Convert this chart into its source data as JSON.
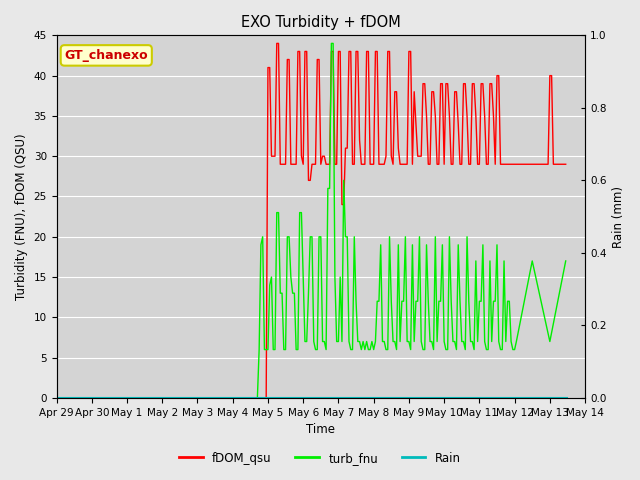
{
  "title": "EXO Turbidity + fDOM",
  "xlabel": "Time",
  "ylabel_left": "Turbidity (FNU), fDOM (QSU)",
  "ylabel_right": "Rain (mm)",
  "ylim_left": [
    0,
    45
  ],
  "ylim_right": [
    0,
    1.0
  ],
  "annotation_text": "GT_chanexo",
  "annotation_color": "#cc0000",
  "annotation_bg": "#ffffcc",
  "annotation_border": "#cccc00",
  "fdom_color": "#ff0000",
  "turb_color": "#00ee00",
  "rain_color": "#00bbbb",
  "fig_bg_color": "#e8e8e8",
  "plot_bg_color": "#d4d4d4",
  "grid_color": "#ffffff",
  "fdom_qsu_times": [
    5.5,
    5.55,
    5.6,
    5.65,
    5.7,
    5.75,
    5.8,
    5.85,
    5.9,
    5.95,
    6.0,
    6.05,
    6.1,
    6.15,
    6.2,
    6.25,
    6.3,
    6.35,
    6.4,
    6.45,
    6.5,
    6.55,
    6.6,
    6.65,
    6.7,
    6.75,
    6.8,
    6.85,
    6.9,
    6.95,
    7.0,
    7.05,
    7.1,
    7.15,
    7.2,
    7.25,
    7.3,
    7.35,
    7.4,
    7.45,
    7.5,
    7.55,
    7.6,
    7.65,
    7.7,
    7.75,
    7.8,
    7.85,
    7.9,
    7.95,
    8.0,
    8.05,
    8.1,
    8.15,
    8.2,
    8.25,
    8.3,
    8.35,
    8.4,
    8.45,
    8.5,
    8.55,
    8.6,
    8.65,
    8.7,
    8.75,
    8.8,
    8.85,
    8.9,
    8.95,
    9.0,
    9.05,
    9.1,
    9.15,
    9.2,
    9.25,
    9.3,
    9.35,
    9.4,
    9.45,
    9.5,
    9.55,
    9.6,
    9.65,
    9.7,
    9.75,
    9.8,
    9.85,
    9.9,
    9.95,
    10.0,
    10.05,
    10.1,
    10.15,
    10.2,
    10.25,
    10.3,
    10.35,
    10.4,
    10.45,
    10.5,
    10.55,
    10.6,
    10.65,
    10.7,
    10.75,
    10.8,
    10.85,
    10.9,
    10.95,
    11.0,
    11.05,
    11.1,
    11.15,
    11.2,
    11.25,
    11.3,
    11.35,
    11.4,
    11.45,
    11.5,
    11.55,
    11.6,
    11.65,
    11.7,
    11.75,
    11.8,
    11.85,
    11.9,
    11.95,
    12.0,
    12.05,
    12.1,
    12.15,
    12.2,
    12.25,
    12.3,
    12.35,
    12.4,
    12.45,
    12.5,
    12.55,
    12.6,
    12.65,
    12.7,
    12.75,
    12.8,
    12.85,
    12.9,
    12.95,
    13.0,
    13.05,
    13.1,
    13.15,
    13.2,
    13.25,
    13.3,
    13.35,
    13.4,
    13.45,
    13.5,
    13.55,
    13.6,
    13.65,
    13.7,
    13.75,
    13.8,
    13.85,
    13.9,
    13.95,
    14.0,
    14.05,
    14.1,
    14.15,
    14.2,
    14.25,
    14.3,
    14.35,
    14.4,
    14.45
  ],
  "fdom_qsu_vals": [
    0,
    0,
    0,
    0,
    0,
    0,
    0,
    0,
    0,
    0,
    41,
    41,
    30,
    30,
    30,
    44,
    44,
    29,
    29,
    29,
    29,
    42,
    42,
    29,
    29,
    29,
    29,
    43,
    43,
    30,
    29,
    43,
    43,
    27,
    27,
    29,
    29,
    29,
    42,
    42,
    29,
    30,
    30,
    29,
    29,
    29,
    43,
    43,
    29,
    29,
    43,
    43,
    24,
    24,
    31,
    31,
    43,
    43,
    29,
    29,
    43,
    43,
    32,
    29,
    29,
    29,
    43,
    43,
    29,
    29,
    29,
    43,
    43,
    29,
    29,
    29,
    29,
    30,
    43,
    43,
    30,
    29,
    38,
    38,
    31,
    29,
    29,
    29,
    29,
    29,
    43,
    43,
    29,
    38,
    34,
    30,
    30,
    30,
    39,
    39,
    35,
    29,
    29,
    38,
    38,
    35,
    29,
    29,
    39,
    39,
    29,
    39,
    39,
    35,
    29,
    29,
    38,
    38,
    34,
    29,
    29,
    39,
    39,
    35,
    29,
    29,
    39,
    39,
    35,
    29,
    29,
    39,
    39,
    35,
    29,
    29,
    39,
    39,
    35,
    29,
    40,
    40,
    29,
    29,
    29,
    29,
    29,
    29,
    29,
    29,
    29,
    29,
    29,
    29,
    29,
    29,
    29,
    29,
    29,
    29,
    29,
    29,
    29,
    29,
    29,
    29,
    29,
    29,
    29,
    29,
    40,
    40,
    29,
    29,
    29,
    29,
    29,
    29,
    29,
    29
  ],
  "turb_fnu_times": [
    5.5,
    5.55,
    5.6,
    5.65,
    5.7,
    5.75,
    5.8,
    5.85,
    5.9,
    5.95,
    6.0,
    6.05,
    6.1,
    6.15,
    6.2,
    6.25,
    6.3,
    6.35,
    6.4,
    6.45,
    6.5,
    6.55,
    6.6,
    6.65,
    6.7,
    6.75,
    6.8,
    6.85,
    6.9,
    6.95,
    7.0,
    7.05,
    7.1,
    7.15,
    7.2,
    7.25,
    7.3,
    7.35,
    7.4,
    7.45,
    7.5,
    7.55,
    7.6,
    7.65,
    7.7,
    7.75,
    7.8,
    7.85,
    7.9,
    7.95,
    8.0,
    8.05,
    8.1,
    8.15,
    8.2,
    8.25,
    8.3,
    8.35,
    8.4,
    8.45,
    8.5,
    8.55,
    8.6,
    8.65,
    8.7,
    8.75,
    8.8,
    8.85,
    8.9,
    8.95,
    9.0,
    9.05,
    9.1,
    9.15,
    9.2,
    9.25,
    9.3,
    9.35,
    9.4,
    9.45,
    9.5,
    9.55,
    9.6,
    9.65,
    9.7,
    9.75,
    9.8,
    9.85,
    9.9,
    9.95,
    10.0,
    10.05,
    10.1,
    10.15,
    10.2,
    10.25,
    10.3,
    10.35,
    10.4,
    10.45,
    10.5,
    10.55,
    10.6,
    10.65,
    10.7,
    10.75,
    10.8,
    10.85,
    10.9,
    10.95,
    11.0,
    11.05,
    11.1,
    11.15,
    11.2,
    11.25,
    11.3,
    11.35,
    11.4,
    11.45,
    11.5,
    11.55,
    11.6,
    11.65,
    11.7,
    11.75,
    11.8,
    11.85,
    11.9,
    11.95,
    12.0,
    12.05,
    12.1,
    12.15,
    12.2,
    12.25,
    12.3,
    12.35,
    12.4,
    12.45,
    12.5,
    12.55,
    12.6,
    12.65,
    12.7,
    12.75,
    12.8,
    12.85,
    12.9,
    12.95,
    13.0,
    13.05,
    13.5,
    14.0,
    14.45
  ],
  "turb_fnu_vals": [
    0,
    0,
    0,
    0,
    0,
    6,
    19,
    20,
    6,
    6,
    6,
    14,
    15,
    6,
    6,
    23,
    23,
    13,
    13,
    6,
    6,
    20,
    20,
    15,
    13,
    13,
    6,
    6,
    23,
    23,
    15,
    7,
    7,
    13,
    20,
    20,
    7,
    6,
    6,
    20,
    20,
    7,
    7,
    6,
    26,
    26,
    44,
    44,
    15,
    7,
    7,
    15,
    7,
    27,
    20,
    20,
    7,
    6,
    6,
    20,
    12,
    7,
    7,
    6,
    7,
    6,
    7,
    6,
    6,
    7,
    6,
    7,
    12,
    12,
    19,
    7,
    7,
    6,
    6,
    20,
    12,
    7,
    7,
    6,
    19,
    7,
    12,
    12,
    20,
    7,
    7,
    6,
    19,
    7,
    12,
    12,
    20,
    7,
    6,
    6,
    19,
    12,
    7,
    7,
    6,
    20,
    7,
    12,
    12,
    19,
    7,
    6,
    6,
    20,
    12,
    7,
    7,
    6,
    19,
    12,
    7,
    7,
    6,
    20,
    12,
    7,
    7,
    6,
    17,
    7,
    12,
    12,
    19,
    7,
    6,
    6,
    17,
    7,
    12,
    12,
    19,
    7,
    6,
    6,
    17,
    7,
    12,
    12,
    7,
    6,
    6,
    7,
    17,
    7,
    17
  ],
  "rain_times": [
    0,
    5.5,
    5.65,
    5.7,
    14.5
  ],
  "rain_vals": [
    0,
    0,
    0,
    0,
    0
  ],
  "x_tick_labels": [
    "Apr 29",
    "Apr 30",
    "May 1",
    "May 2",
    "May 3",
    "May 4",
    "May 5",
    "May 6",
    "May 7",
    "May 8",
    "May 9",
    "May 10",
    "May 11",
    "May 12",
    "May 13",
    "May 14"
  ],
  "x_tick_offsets": [
    0,
    1,
    2,
    3,
    4,
    5,
    6,
    7,
    8,
    9,
    10,
    11,
    12,
    13,
    14,
    15
  ]
}
